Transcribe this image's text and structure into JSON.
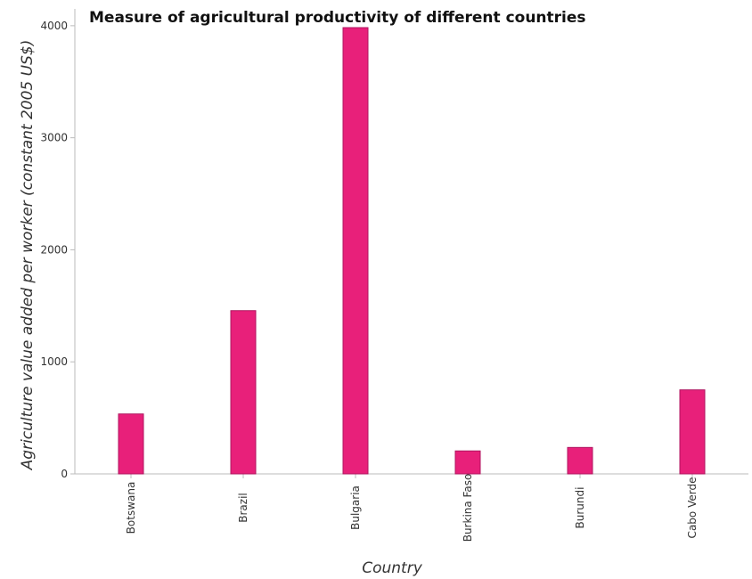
{
  "chart_data": {
    "type": "bar",
    "title": "Measure of agricultural productivity of different countries",
    "xlabel": "Country",
    "ylabel": "Agriculture value added per worker (constant 2005 US$)",
    "categories": [
      "Botswana",
      "Brazil",
      "Bulgaria",
      "Burkina Faso",
      "Burundi",
      "Cabo Verde"
    ],
    "values": [
      535,
      1457,
      3983,
      205,
      236,
      750
    ],
    "ylim": [
      0,
      4150
    ],
    "yticks": [
      0,
      1000,
      2000,
      3000,
      4000
    ],
    "ytick_labels": [
      "0",
      "1000",
      "2000",
      "3000",
      "4000"
    ],
    "bar_color": "#e8207a",
    "grid": false,
    "legend": "none"
  }
}
